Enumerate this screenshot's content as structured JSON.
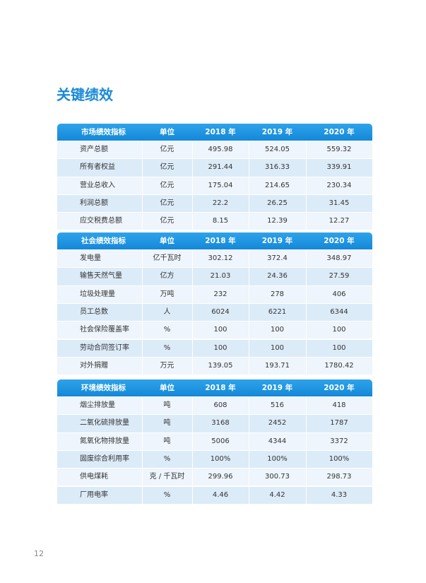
{
  "title": "关键绩效",
  "sections": [
    {
      "header": [
        "市场绩效指标",
        "单位",
        "2018 年",
        "2019 年",
        "2020 年"
      ],
      "rows": [
        [
          "资产总额",
          "亿元",
          "495.98",
          "524.05",
          "559.32"
        ],
        [
          "所有者权益",
          "亿元",
          "291.44",
          "316.33",
          "339.91"
        ],
        [
          "营业总收入",
          "亿元",
          "175.04",
          "214.65",
          "230.34"
        ],
        [
          "利润总额",
          "亿元",
          "22.2",
          "26.25",
          "31.45"
        ],
        [
          "应交税费总额",
          "亿元",
          "8.15",
          "12.39",
          "12.27"
        ]
      ]
    },
    {
      "header": [
        "社会绩效指标",
        "单位",
        "2018 年",
        "2019 年",
        "2020 年"
      ],
      "rows": [
        [
          "发电量",
          "亿千瓦时",
          "302.12",
          "372.4",
          "348.97"
        ],
        [
          "输售天然气量",
          "亿方",
          "21.03",
          "24.36",
          "27.59"
        ],
        [
          "垃圾处理量",
          "万吨",
          "232",
          "278",
          "406"
        ],
        [
          "员工总数",
          "人",
          "6024",
          "6221",
          "6344"
        ],
        [
          "社会保险覆盖率",
          "%",
          "100",
          "100",
          "100"
        ],
        [
          "劳动合同签订率",
          "%",
          "100",
          "100",
          "100"
        ],
        [
          "对外捐赠",
          "万元",
          "139.05",
          "193.71",
          "1780.42"
        ]
      ]
    },
    {
      "header": [
        "环境绩效指标",
        "单位",
        "2018 年",
        "2019 年",
        "2020 年"
      ],
      "rows": [
        [
          "烟尘排放量",
          "吨",
          "608",
          "516",
          "418"
        ],
        [
          "二氧化硫排放量",
          "吨",
          "3168",
          "2452",
          "1787"
        ],
        [
          "氮氧化物排放量",
          "吨",
          "5006",
          "4344",
          "3372"
        ],
        [
          "固废综合利用率",
          "%",
          "100%",
          "100%",
          "100%"
        ],
        [
          "供电煤耗",
          "克 / 千瓦时",
          "299.96",
          "300.73",
          "298.73"
        ],
        [
          "厂用电率",
          "%",
          "4.46",
          "4.42",
          "4.33"
        ]
      ]
    }
  ],
  "page_number": "12"
}
